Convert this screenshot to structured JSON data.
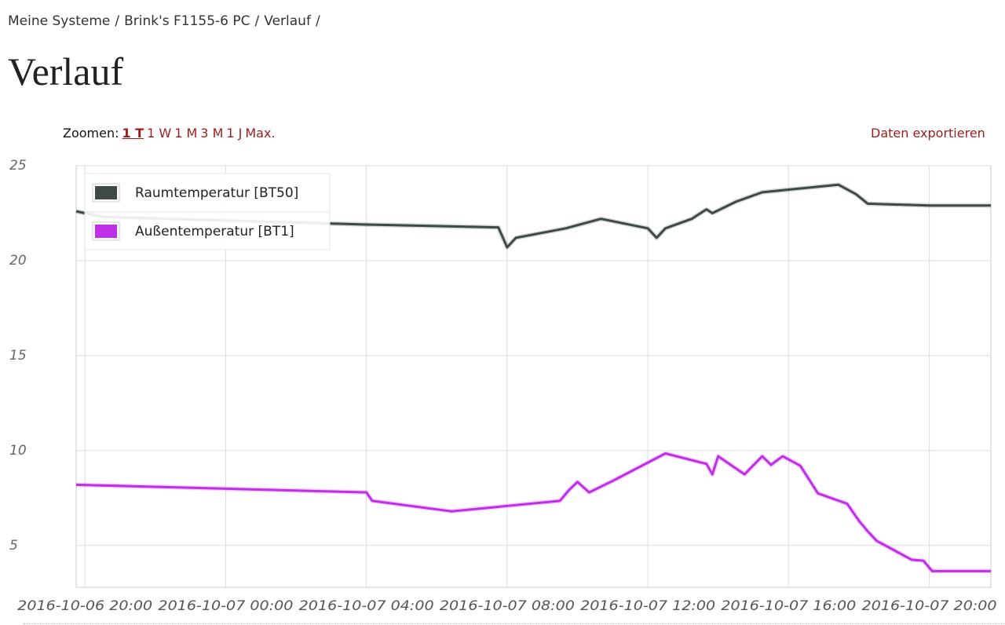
{
  "breadcrumb": {
    "items": [
      "Meine Systeme",
      "Brink's F1155-6 PC",
      "Verlauf"
    ],
    "separator": "/"
  },
  "header": {
    "title": "Verlauf"
  },
  "toolbar": {
    "zoom_label": "Zoomen:",
    "zoom_options": [
      "1 T",
      "1 W",
      "1 M",
      "3 M",
      "1 J",
      "Max."
    ],
    "export": "Daten exportieren"
  },
  "chart_data": {
    "type": "line",
    "xlim": [
      "2016-10-06 19:45",
      "2016-10-07 21:45"
    ],
    "xticks": [
      "2016-10-06 20:00",
      "2016-10-07 00:00",
      "2016-10-07 04:00",
      "2016-10-07 08:00",
      "2016-10-07 12:00",
      "2016-10-07 16:00",
      "2016-10-07 20:00"
    ],
    "ylim": [
      2.8,
      25
    ],
    "yticks": [
      5,
      10,
      15,
      20,
      25
    ],
    "grid": true,
    "legend": "upper left",
    "series": [
      {
        "name": "Raumtemperatur [BT50]",
        "color": "#3e4a48",
        "x": [
          "2016-10-06 19:45",
          "2016-10-06 20:30",
          "2016-10-07 04:00",
          "2016-10-07 07:45",
          "2016-10-07 08:00",
          "2016-10-07 08:15",
          "2016-10-07 09:40",
          "2016-10-07 10:40",
          "2016-10-07 12:00",
          "2016-10-07 12:15",
          "2016-10-07 12:30",
          "2016-10-07 13:15",
          "2016-10-07 13:40",
          "2016-10-07 13:50",
          "2016-10-07 14:30",
          "2016-10-07 15:15",
          "2016-10-07 17:25",
          "2016-10-07 17:55",
          "2016-10-07 18:15",
          "2016-10-07 20:00",
          "2016-10-07 21:45"
        ],
        "values": [
          22.6,
          22.3,
          21.9,
          21.75,
          20.7,
          21.2,
          21.7,
          22.2,
          21.7,
          21.2,
          21.7,
          22.2,
          22.7,
          22.5,
          23.1,
          23.6,
          24.0,
          23.5,
          23.0,
          22.9,
          22.9
        ]
      },
      {
        "name": "Außentemperatur [BT1]",
        "color": "#c12ee8",
        "x": [
          "2016-10-06 19:45",
          "2016-10-07 04:00",
          "2016-10-07 04:10",
          "2016-10-07 06:25",
          "2016-10-07 09:30",
          "2016-10-07 09:45",
          "2016-10-07 10:00",
          "2016-10-07 10:20",
          "2016-10-07 11:00",
          "2016-10-07 12:30",
          "2016-10-07 13:40",
          "2016-10-07 13:50",
          "2016-10-07 14:00",
          "2016-10-07 14:45",
          "2016-10-07 15:15",
          "2016-10-07 15:30",
          "2016-10-07 15:50",
          "2016-10-07 16:20",
          "2016-10-07 16:50",
          "2016-10-07 17:40",
          "2016-10-07 18:00",
          "2016-10-07 18:15",
          "2016-10-07 18:30",
          "2016-10-07 19:30",
          "2016-10-07 19:50",
          "2016-10-07 20:05",
          "2016-10-07 21:45"
        ],
        "values": [
          8.2,
          7.8,
          7.35,
          6.8,
          7.35,
          7.9,
          8.35,
          7.8,
          8.4,
          9.85,
          9.3,
          8.75,
          9.7,
          8.75,
          9.7,
          9.25,
          9.7,
          9.2,
          7.75,
          7.2,
          6.3,
          5.75,
          5.25,
          4.25,
          4.2,
          3.65,
          3.65
        ]
      }
    ]
  }
}
